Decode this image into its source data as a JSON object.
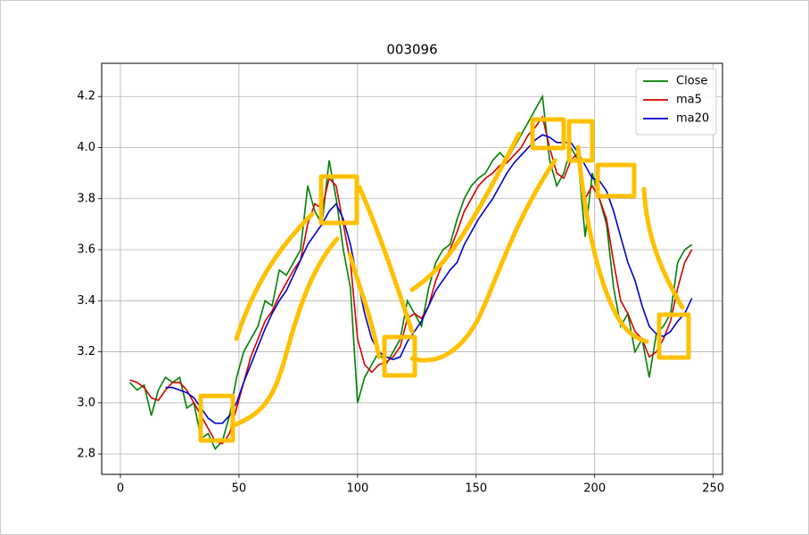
{
  "chart_data": {
    "type": "line",
    "title": "003096",
    "x": [
      4,
      7,
      10,
      13,
      16,
      19,
      22,
      25,
      28,
      31,
      34,
      37,
      40,
      43,
      46,
      49,
      52,
      55,
      58,
      61,
      64,
      67,
      70,
      73,
      76,
      79,
      82,
      85,
      88,
      91,
      94,
      97,
      100,
      103,
      106,
      109,
      112,
      115,
      118,
      121,
      124,
      127,
      130,
      133,
      136,
      139,
      142,
      145,
      148,
      151,
      154,
      157,
      160,
      163,
      166,
      169,
      172,
      175,
      178,
      181,
      184,
      187,
      190,
      193,
      196,
      199,
      202,
      205,
      208,
      211,
      214,
      217,
      220,
      223,
      226,
      229,
      232,
      235,
      238,
      241
    ],
    "series": [
      {
        "name": "Close",
        "color": "#008000",
        "values": [
          3.08,
          3.05,
          3.07,
          2.95,
          3.05,
          3.1,
          3.08,
          3.1,
          2.98,
          3.0,
          2.86,
          2.88,
          2.82,
          2.85,
          2.95,
          3.1,
          3.2,
          3.25,
          3.3,
          3.4,
          3.38,
          3.52,
          3.5,
          3.55,
          3.6,
          3.85,
          3.75,
          3.7,
          3.95,
          3.8,
          3.6,
          3.45,
          3.0,
          3.1,
          3.15,
          3.2,
          3.15,
          3.2,
          3.25,
          3.4,
          3.35,
          3.3,
          3.45,
          3.55,
          3.6,
          3.62,
          3.72,
          3.8,
          3.85,
          3.88,
          3.9,
          3.95,
          3.98,
          3.95,
          4.0,
          4.05,
          4.1,
          4.15,
          4.2,
          3.95,
          3.85,
          3.9,
          4.0,
          3.95,
          3.65,
          3.9,
          3.8,
          3.7,
          3.45,
          3.3,
          3.35,
          3.2,
          3.25,
          3.1,
          3.27,
          3.3,
          3.35,
          3.55,
          3.6,
          3.62
        ]
      },
      {
        "name": "ma5",
        "color": "#d40000",
        "values": [
          3.09,
          3.08,
          3.06,
          3.02,
          3.01,
          3.05,
          3.08,
          3.08,
          3.05,
          3.0,
          2.95,
          2.9,
          2.85,
          2.84,
          2.88,
          2.98,
          3.08,
          3.18,
          3.25,
          3.32,
          3.36,
          3.42,
          3.47,
          3.52,
          3.56,
          3.7,
          3.78,
          3.76,
          3.88,
          3.85,
          3.7,
          3.55,
          3.25,
          3.15,
          3.12,
          3.15,
          3.16,
          3.18,
          3.22,
          3.33,
          3.35,
          3.33,
          3.38,
          3.48,
          3.55,
          3.6,
          3.67,
          3.75,
          3.8,
          3.85,
          3.88,
          3.9,
          3.93,
          3.94,
          3.97,
          4.0,
          4.05,
          4.08,
          4.12,
          4.0,
          3.9,
          3.88,
          3.95,
          3.98,
          3.8,
          3.85,
          3.8,
          3.72,
          3.55,
          3.4,
          3.35,
          3.28,
          3.25,
          3.18,
          3.2,
          3.25,
          3.32,
          3.45,
          3.55,
          3.6
        ]
      },
      {
        "name": "ma20",
        "color": "#0000cc",
        "values": [
          null,
          null,
          null,
          null,
          null,
          3.06,
          3.06,
          3.05,
          3.04,
          3.02,
          2.98,
          2.94,
          2.92,
          2.92,
          2.95,
          3.0,
          3.08,
          3.15,
          3.22,
          3.29,
          3.35,
          3.4,
          3.44,
          3.5,
          3.56,
          3.62,
          3.66,
          3.7,
          3.75,
          3.78,
          3.72,
          3.62,
          3.48,
          3.35,
          3.25,
          3.2,
          3.18,
          3.17,
          3.18,
          3.24,
          3.28,
          3.32,
          3.38,
          3.44,
          3.48,
          3.52,
          3.55,
          3.62,
          3.67,
          3.72,
          3.76,
          3.8,
          3.85,
          3.9,
          3.94,
          3.97,
          4.0,
          4.03,
          4.05,
          4.04,
          4.02,
          4.02,
          4.02,
          3.98,
          3.93,
          3.88,
          3.87,
          3.83,
          3.75,
          3.65,
          3.55,
          3.48,
          3.38,
          3.3,
          3.27,
          3.26,
          3.28,
          3.32,
          3.35,
          3.41
        ]
      }
    ],
    "xlim": [
      -7.9,
      253.9
    ],
    "xticks": [
      0,
      50,
      100,
      150,
      200,
      250
    ],
    "ylim": [
      2.72,
      4.33
    ],
    "yticks": [
      2.8,
      {
        "value": 3,
        "label": "3.0"
      },
      3.2,
      3.4,
      3.6,
      3.8,
      {
        "value": 4,
        "label": "4.0"
      },
      4.2
    ],
    "grid": true,
    "legend": "upper-right"
  }
}
